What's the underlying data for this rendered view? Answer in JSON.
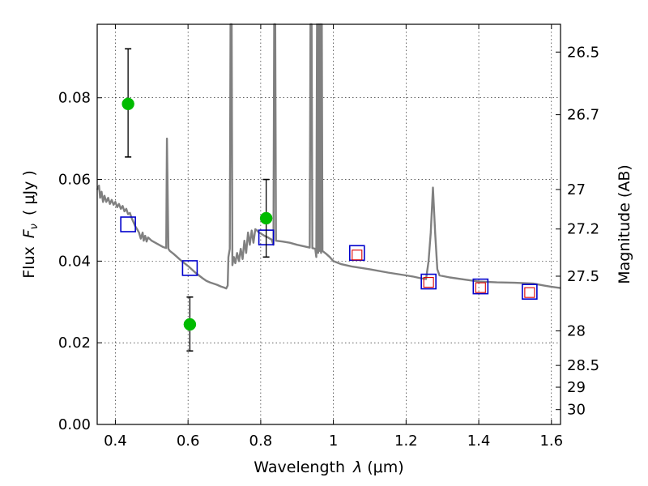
{
  "chart_data": {
    "type": "scatter",
    "xlabel_prefix": "Wavelength",
    "xlabel_symbol": "λ",
    "xlabel_unit": "(μm)",
    "ylabel_prefix": "Flux",
    "ylabel_symbol": "F",
    "ylabel_subscript": "ν",
    "ylabel_unit": "( μJy )",
    "y2label": "Magnitude (AB)",
    "xlim": [
      0.35,
      1.625
    ],
    "ylim": [
      0.0,
      0.098
    ],
    "x_ticks": [
      {
        "v": 0.4,
        "label": "0.4"
      },
      {
        "v": 0.6,
        "label": "0.6"
      },
      {
        "v": 0.8,
        "label": "0.8"
      },
      {
        "v": 1.0,
        "label": "1"
      },
      {
        "v": 1.2,
        "label": "1.2"
      },
      {
        "v": 1.4,
        "label": "1.4"
      },
      {
        "v": 1.6,
        "label": "1.6"
      }
    ],
    "y_ticks": [
      {
        "v": 0.0,
        "label": "0.00"
      },
      {
        "v": 0.02,
        "label": "0.02"
      },
      {
        "v": 0.04,
        "label": "0.04"
      },
      {
        "v": 0.06,
        "label": "0.06"
      },
      {
        "v": 0.08,
        "label": "0.08"
      }
    ],
    "y2_ticks": [
      {
        "mag": 26.5,
        "label": "26.5"
      },
      {
        "mag": 26.7,
        "label": "26.7"
      },
      {
        "mag": 27.0,
        "label": "27"
      },
      {
        "mag": 27.2,
        "label": "27.2"
      },
      {
        "mag": 27.5,
        "label": "27.5"
      },
      {
        "mag": 28.0,
        "label": "28"
      },
      {
        "mag": 28.5,
        "label": "28.5"
      },
      {
        "mag": 29.0,
        "label": "29"
      },
      {
        "mag": 30.0,
        "label": "30"
      }
    ],
    "grid": true,
    "colors": {
      "sed": "#808080",
      "observed": "#00bb00",
      "model_box": "#0000cc",
      "inner_box": "#dd0000",
      "errorbar": "#000000"
    },
    "sed_curve": [
      [
        0.35,
        0.0575
      ],
      [
        0.355,
        0.0585
      ],
      [
        0.358,
        0.0555
      ],
      [
        0.362,
        0.057
      ],
      [
        0.366,
        0.0545
      ],
      [
        0.37,
        0.056
      ],
      [
        0.375,
        0.0545
      ],
      [
        0.38,
        0.0555
      ],
      [
        0.385,
        0.054
      ],
      [
        0.39,
        0.055
      ],
      [
        0.395,
        0.0538
      ],
      [
        0.4,
        0.0545
      ],
      [
        0.405,
        0.0532
      ],
      [
        0.41,
        0.054
      ],
      [
        0.415,
        0.0528
      ],
      [
        0.42,
        0.0535
      ],
      [
        0.425,
        0.0522
      ],
      [
        0.43,
        0.0528
      ],
      [
        0.435,
        0.0515
      ],
      [
        0.44,
        0.0518
      ],
      [
        0.445,
        0.0505
      ],
      [
        0.45,
        0.0495
      ],
      [
        0.455,
        0.0485
      ],
      [
        0.46,
        0.0478
      ],
      [
        0.465,
        0.047
      ],
      [
        0.47,
        0.0455
      ],
      [
        0.475,
        0.047
      ],
      [
        0.478,
        0.045
      ],
      [
        0.482,
        0.0462
      ],
      [
        0.486,
        0.0448
      ],
      [
        0.49,
        0.0458
      ],
      [
        0.5,
        0.045
      ],
      [
        0.51,
        0.0445
      ],
      [
        0.52,
        0.044
      ],
      [
        0.53,
        0.0435
      ],
      [
        0.54,
        0.0432
      ],
      [
        0.542,
        0.07
      ],
      [
        0.546,
        0.043
      ],
      [
        0.55,
        0.0425
      ],
      [
        0.56,
        0.0418
      ],
      [
        0.57,
        0.041
      ],
      [
        0.58,
        0.0402
      ],
      [
        0.59,
        0.0395
      ],
      [
        0.6,
        0.0388
      ],
      [
        0.61,
        0.038
      ],
      [
        0.62,
        0.0372
      ],
      [
        0.63,
        0.0365
      ],
      [
        0.64,
        0.0358
      ],
      [
        0.65,
        0.0352
      ],
      [
        0.66,
        0.0348
      ],
      [
        0.67,
        0.0345
      ],
      [
        0.68,
        0.0342
      ],
      [
        0.69,
        0.0338
      ],
      [
        0.7,
        0.0335
      ],
      [
        0.705,
        0.0333
      ],
      [
        0.709,
        0.034
      ],
      [
        0.711,
        0.041
      ],
      [
        0.715,
        0.043
      ],
      [
        0.717,
        0.098
      ],
      [
        0.72,
        0.098
      ],
      [
        0.722,
        0.039
      ],
      [
        0.726,
        0.041
      ],
      [
        0.73,
        0.0395
      ],
      [
        0.735,
        0.042
      ],
      [
        0.74,
        0.04
      ],
      [
        0.745,
        0.043
      ],
      [
        0.75,
        0.0405
      ],
      [
        0.755,
        0.045
      ],
      [
        0.76,
        0.042
      ],
      [
        0.765,
        0.047
      ],
      [
        0.77,
        0.044
      ],
      [
        0.775,
        0.0475
      ],
      [
        0.78,
        0.0445
      ],
      [
        0.785,
        0.0478
      ],
      [
        0.79,
        0.0475
      ],
      [
        0.795,
        0.047
      ],
      [
        0.8,
        0.0468
      ],
      [
        0.805,
        0.0465
      ],
      [
        0.81,
        0.0462
      ],
      [
        0.815,
        0.046
      ],
      [
        0.82,
        0.0458
      ],
      [
        0.825,
        0.0455
      ],
      [
        0.83,
        0.0453
      ],
      [
        0.835,
        0.044
      ],
      [
        0.837,
        0.098
      ],
      [
        0.84,
        0.098
      ],
      [
        0.842,
        0.045
      ],
      [
        0.86,
        0.0448
      ],
      [
        0.88,
        0.0445
      ],
      [
        0.9,
        0.044
      ],
      [
        0.92,
        0.0436
      ],
      [
        0.93,
        0.0434
      ],
      [
        0.935,
        0.0433
      ],
      [
        0.937,
        0.098
      ],
      [
        0.94,
        0.098
      ],
      [
        0.942,
        0.0432
      ],
      [
        0.95,
        0.043
      ],
      [
        0.953,
        0.041
      ],
      [
        0.955,
        0.098
      ],
      [
        0.958,
        0.042
      ],
      [
        0.96,
        0.098
      ],
      [
        0.962,
        0.0425
      ],
      [
        0.964,
        0.098
      ],
      [
        0.966,
        0.042
      ],
      [
        0.968,
        0.098
      ],
      [
        0.97,
        0.0425
      ],
      [
        0.98,
        0.0418
      ],
      [
        0.99,
        0.041
      ],
      [
        1.0,
        0.04
      ],
      [
        1.02,
        0.0393
      ],
      [
        1.05,
        0.0387
      ],
      [
        1.1,
        0.038
      ],
      [
        1.15,
        0.0372
      ],
      [
        1.2,
        0.0365
      ],
      [
        1.22,
        0.0362
      ],
      [
        1.24,
        0.0358
      ],
      [
        1.255,
        0.0356
      ],
      [
        1.262,
        0.04
      ],
      [
        1.268,
        0.047
      ],
      [
        1.274,
        0.058
      ],
      [
        1.28,
        0.047
      ],
      [
        1.286,
        0.038
      ],
      [
        1.292,
        0.0365
      ],
      [
        1.32,
        0.036
      ],
      [
        1.36,
        0.0355
      ],
      [
        1.4,
        0.035
      ],
      [
        1.45,
        0.0348
      ],
      [
        1.5,
        0.0347
      ],
      [
        1.55,
        0.0345
      ],
      [
        1.58,
        0.034
      ],
      [
        1.6,
        0.0337
      ],
      [
        1.625,
        0.0334
      ]
    ],
    "observed_points": [
      {
        "x": 0.435,
        "y": 0.0785,
        "ylo": 0.0655,
        "yhi": 0.092
      },
      {
        "x": 0.605,
        "y": 0.0245,
        "ylo": 0.018,
        "yhi": 0.0312
      },
      {
        "x": 0.815,
        "y": 0.0505,
        "ylo": 0.041,
        "yhi": 0.06
      }
    ],
    "model_points": [
      {
        "x": 0.435,
        "y": 0.049
      },
      {
        "x": 0.605,
        "y": 0.0383
      },
      {
        "x": 0.815,
        "y": 0.0458
      },
      {
        "x": 1.065,
        "y": 0.042
      },
      {
        "x": 1.262,
        "y": 0.035
      },
      {
        "x": 1.405,
        "y": 0.0338
      },
      {
        "x": 1.54,
        "y": 0.0325
      }
    ],
    "inner_points": [
      {
        "x": 1.065,
        "y": 0.0415
      },
      {
        "x": 1.262,
        "y": 0.0348
      },
      {
        "x": 1.405,
        "y": 0.0335
      },
      {
        "x": 1.54,
        "y": 0.0323
      }
    ]
  }
}
